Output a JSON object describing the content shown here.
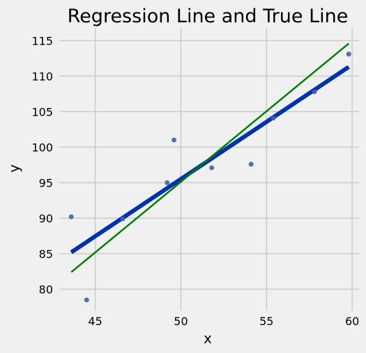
{
  "chart_data": {
    "type": "scatter",
    "title": "Regression Line and True Line",
    "xlabel": "x",
    "ylabel": "y",
    "xlim": [
      42.9,
      60.4
    ],
    "ylim": [
      77.0,
      116.8
    ],
    "xticks": [
      45,
      50,
      55,
      60
    ],
    "yticks": [
      80,
      85,
      90,
      95,
      100,
      105,
      110,
      115
    ],
    "grid": true,
    "colors": {
      "background": "#f0f0f0",
      "points": "#4060b0",
      "regression_line": "#0033aa",
      "true_line": "#008000"
    },
    "points": {
      "x": [
        43.6,
        44.5,
        46.6,
        49.2,
        49.6,
        51.8,
        54.1,
        55.4,
        57.8,
        59.8
      ],
      "y": [
        90.2,
        78.5,
        89.9,
        95.0,
        101.0,
        97.1,
        97.6,
        104.1,
        107.8,
        113.1
      ]
    },
    "lines": [
      {
        "id": "regression",
        "x": [
          43.6,
          59.8
        ],
        "y": [
          85.2,
          111.3
        ]
      },
      {
        "id": "true",
        "x": [
          43.6,
          59.8
        ],
        "y": [
          82.4,
          114.6
        ]
      }
    ]
  }
}
